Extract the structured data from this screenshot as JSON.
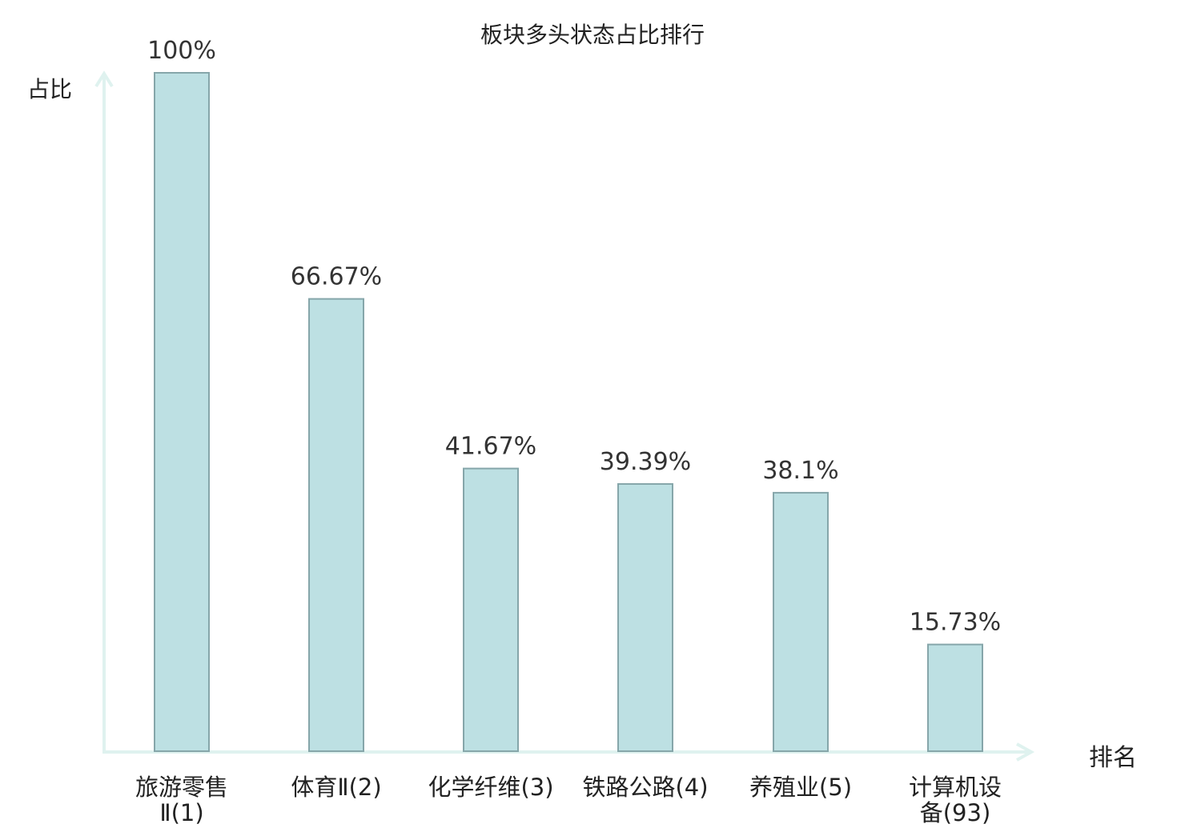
{
  "chart_data": {
    "type": "bar",
    "title": "板块多头状态占比排行",
    "ylabel": "占比",
    "xlabel": "排名",
    "categories": [
      {
        "name": "旅游零售Ⅱ",
        "rank": "(1)",
        "highlight": false
      },
      {
        "name": "体育Ⅱ",
        "rank": "(2)",
        "highlight": false
      },
      {
        "name": "化学纤维",
        "rank": "(3)",
        "highlight": false
      },
      {
        "name": "铁路公路",
        "rank": "(4)",
        "highlight": false
      },
      {
        "name": "养殖业",
        "rank": "(5)",
        "highlight": false
      },
      {
        "name": "计算机设备",
        "rank": "(93)",
        "highlight": true
      }
    ],
    "values": [
      100,
      66.67,
      41.67,
      39.39,
      38.1,
      15.73
    ],
    "value_labels": [
      "100%",
      "66.67%",
      "41.67%",
      "39.39%",
      "38.1%",
      "15.73%"
    ],
    "ylim": [
      0,
      100
    ],
    "grid": false,
    "colors": {
      "bar_fill": "#bde0e3",
      "bar_stroke": "#86a6aa",
      "axis": "#dff2ef",
      "highlight_text": "#e8161b",
      "normal_text": "#222222"
    }
  }
}
